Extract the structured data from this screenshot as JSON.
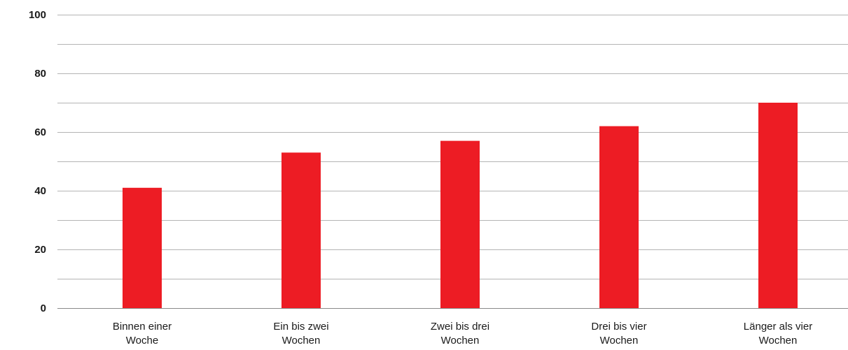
{
  "chart_data": {
    "type": "bar",
    "title": "",
    "xlabel": "",
    "ylabel": "",
    "categories": [
      [
        "Binnen einer",
        "Woche"
      ],
      [
        "Ein bis zwei",
        "Wochen"
      ],
      [
        "Zwei bis drei",
        "Wochen"
      ],
      [
        "Drei bis vier",
        "Wochen"
      ],
      [
        "Länger als vier",
        "Wochen"
      ]
    ],
    "values": [
      41,
      53,
      57,
      62,
      70
    ],
    "ylim": [
      0,
      100
    ],
    "yticks": [
      0,
      20,
      40,
      60,
      80,
      100
    ],
    "minor_gridlines": [
      10,
      30,
      50,
      70,
      90
    ],
    "grid": true,
    "legend": "none",
    "colors": {
      "bar": "#ed1c24",
      "grid": "#b4b4b4",
      "text": "#1a1a1a"
    }
  }
}
